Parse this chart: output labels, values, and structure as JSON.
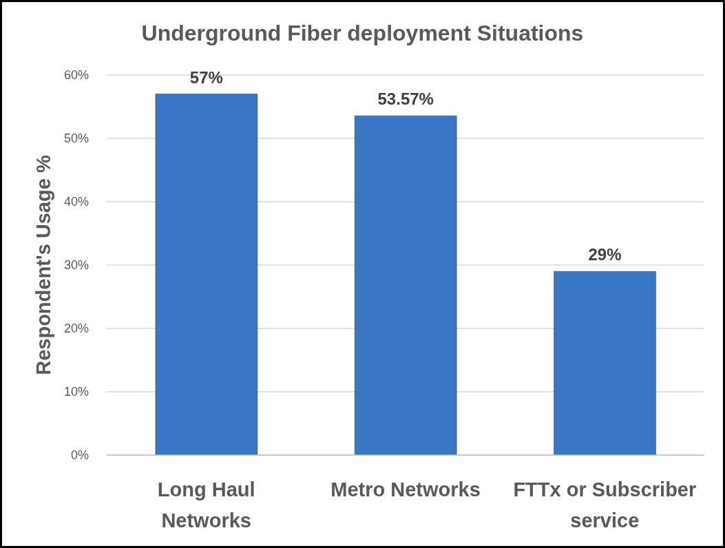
{
  "chart_data": {
    "type": "bar",
    "title": "Underground Fiber deployment Situations",
    "ylabel": "Respondent's Usage %",
    "categories": [
      "Long Haul Networks",
      "Metro Networks",
      "FTTx or Subscriber service"
    ],
    "values": [
      57,
      53.57,
      29
    ],
    "value_labels": [
      "57%",
      "53.57%",
      "29%"
    ],
    "color": "#3a76c6",
    "ylim": [
      0,
      60
    ],
    "yticks": [
      {
        "value": 0,
        "label": "0%"
      },
      {
        "value": 10,
        "label": "10%"
      },
      {
        "value": 20,
        "label": "20%"
      },
      {
        "value": 30,
        "label": "30%"
      },
      {
        "value": 40,
        "label": "40%"
      },
      {
        "value": 50,
        "label": "50%"
      },
      {
        "value": 60,
        "label": "60%"
      }
    ],
    "grid": "y"
  }
}
